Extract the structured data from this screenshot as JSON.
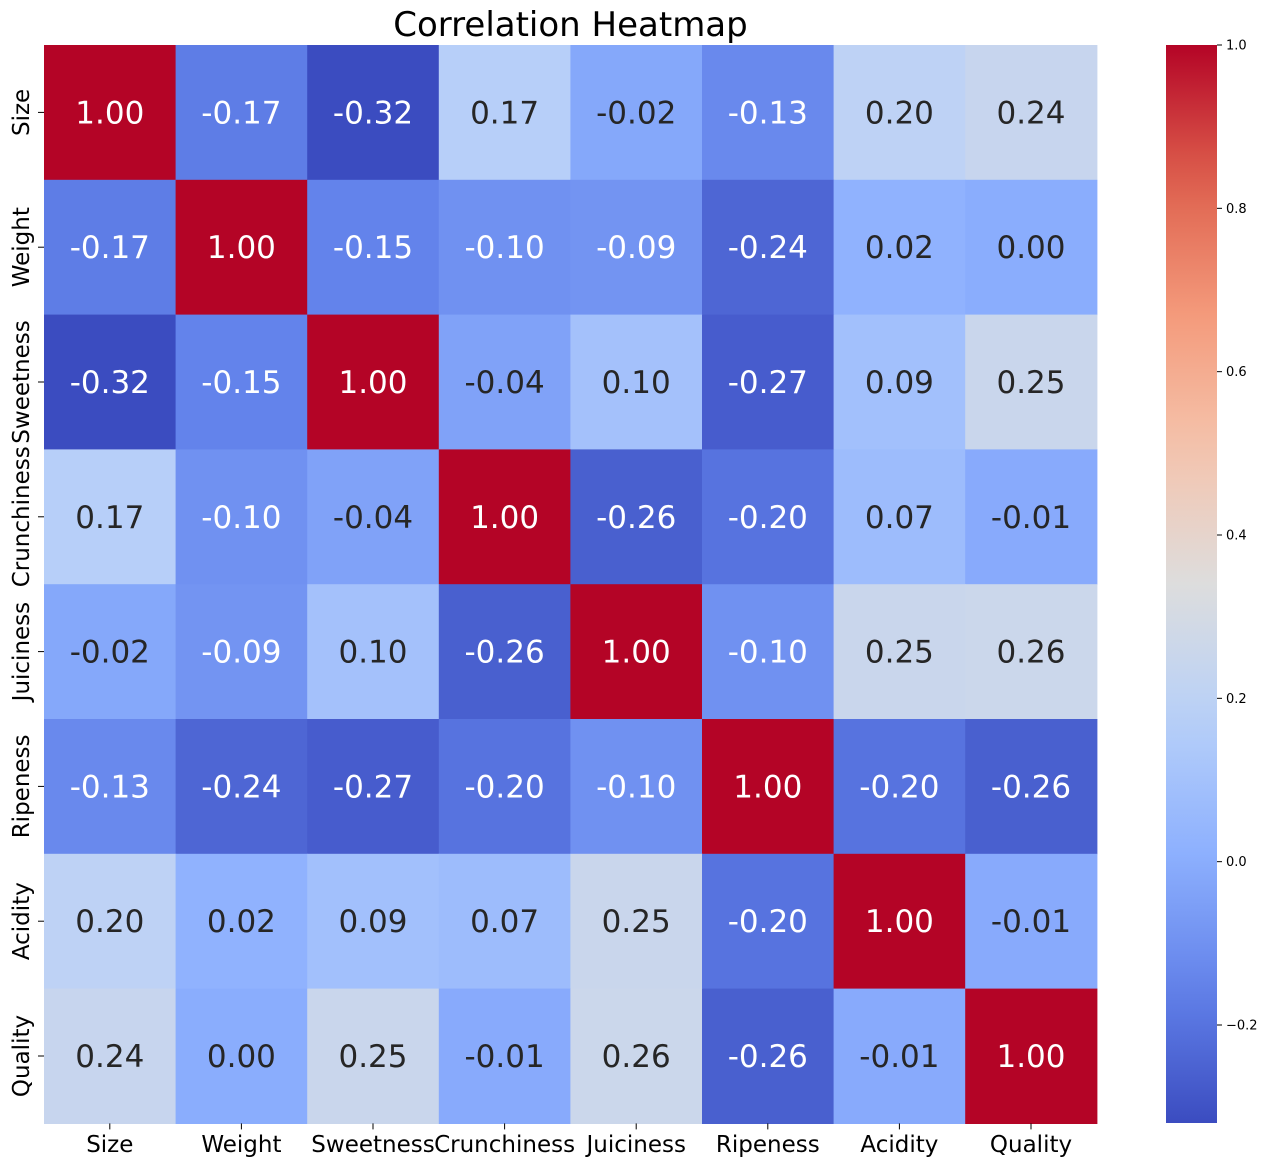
{
  "chart_data": {
    "type": "heatmap",
    "title": "Correlation Heatmap",
    "xlabel": "",
    "ylabel": "",
    "x_categories": [
      "Size",
      "Weight",
      "Sweetness",
      "Crunchiness",
      "Juiciness",
      "Ripeness",
      "Acidity",
      "Quality"
    ],
    "y_categories": [
      "Size",
      "Weight",
      "Sweetness",
      "Crunchiness",
      "Juiciness",
      "Ripeness",
      "Acidity",
      "Quality"
    ],
    "values": [
      [
        1.0,
        -0.17,
        -0.32,
        0.17,
        -0.02,
        -0.13,
        0.2,
        0.24
      ],
      [
        -0.17,
        1.0,
        -0.15,
        -0.1,
        -0.09,
        -0.24,
        0.02,
        0.0
      ],
      [
        -0.32,
        -0.15,
        1.0,
        -0.04,
        0.1,
        -0.27,
        0.09,
        0.25
      ],
      [
        0.17,
        -0.1,
        -0.04,
        1.0,
        -0.26,
        -0.2,
        0.07,
        -0.01
      ],
      [
        -0.02,
        -0.09,
        0.1,
        -0.26,
        1.0,
        -0.1,
        0.25,
        0.26
      ],
      [
        -0.13,
        -0.24,
        -0.27,
        -0.2,
        -0.1,
        1.0,
        -0.2,
        -0.26
      ],
      [
        0.2,
        0.02,
        0.09,
        0.07,
        0.25,
        -0.2,
        1.0,
        -0.01
      ],
      [
        0.24,
        0.0,
        0.25,
        -0.01,
        0.26,
        -0.26,
        -0.01,
        1.0
      ]
    ],
    "value_format": "2 decimals",
    "colormap": "coolwarm",
    "color_range": [
      -0.32,
      1.0
    ],
    "colorbar": {
      "ticks": [
        -0.2,
        0.0,
        0.2,
        0.4,
        0.6,
        0.8,
        1.0
      ],
      "tick_labels": [
        "−0.2",
        "0.0",
        "0.2",
        "0.4",
        "0.6",
        "0.8",
        "1.0"
      ],
      "placement": "right"
    },
    "grid": false,
    "legend": "none"
  }
}
